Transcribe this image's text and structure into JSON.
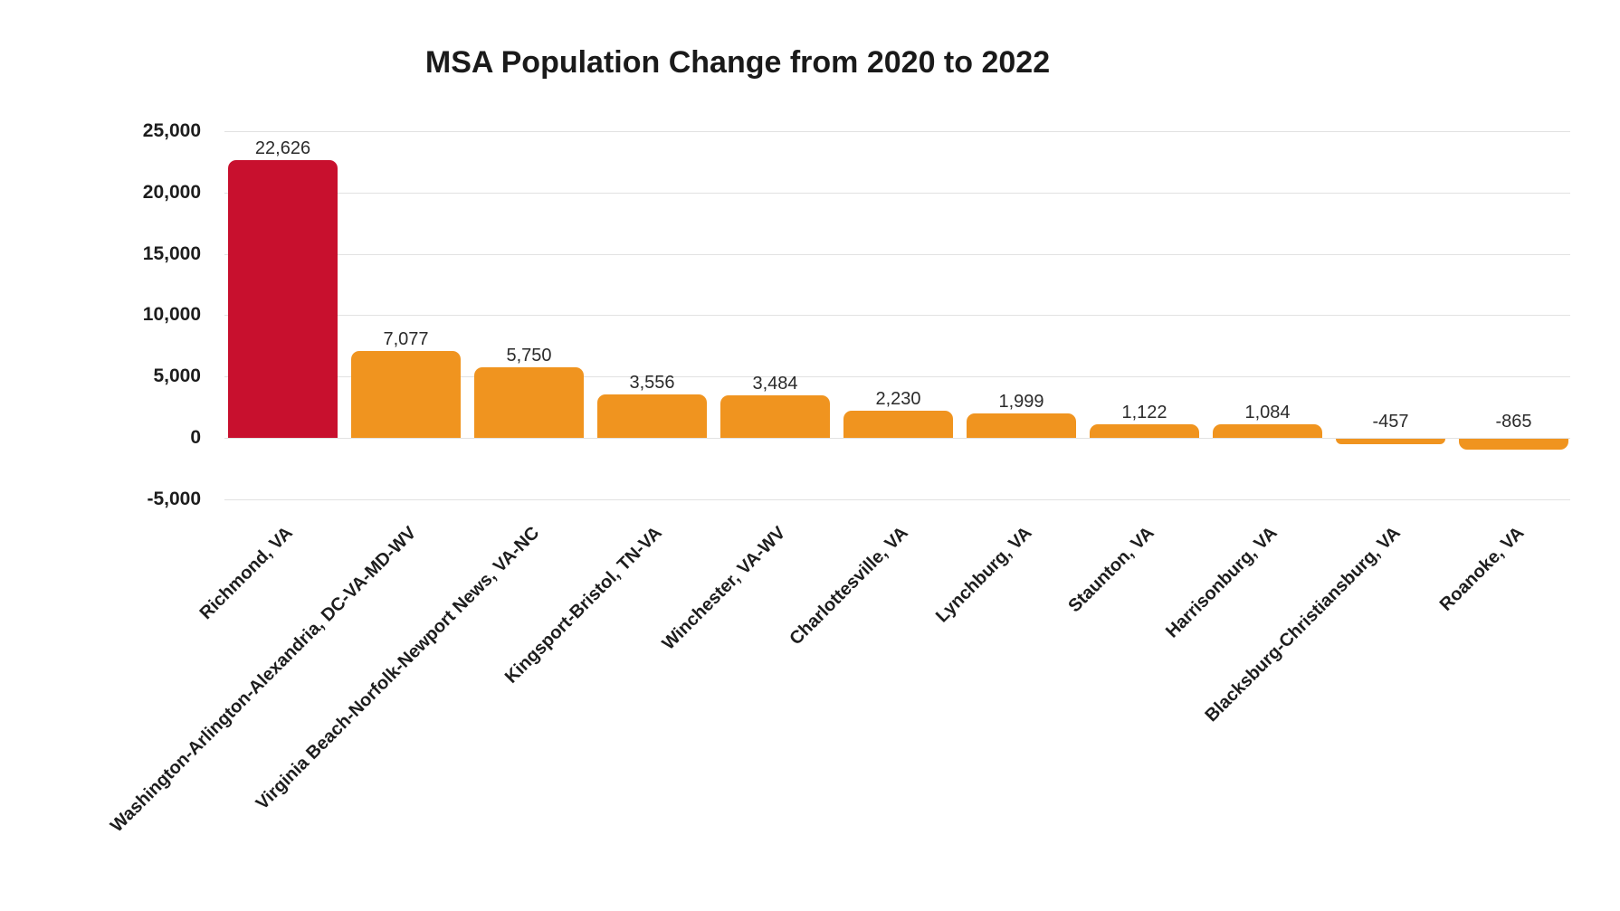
{
  "chart_data": {
    "type": "bar",
    "title": "MSA Population Change from 2020 to 2022",
    "categories": [
      "Richmond, VA",
      "Washington-Arlington-Alexandria, DC-VA-MD-WV",
      "Virginia Beach-Norfolk-Newport News, VA-NC",
      "Kingsport-Bristol, TN-VA",
      "Winchester, VA-WV",
      "Charlottesville, VA",
      "Lynchburg, VA",
      "Staunton, VA",
      "Harrisonburg, VA",
      "Blacksburg-Christiansburg, VA",
      "Roanoke, VA"
    ],
    "values": [
      22626,
      7077,
      5750,
      3556,
      3484,
      2230,
      1999,
      1122,
      1084,
      -457,
      -865
    ],
    "value_labels": [
      "22,626",
      "7,077",
      "5,750",
      "3,556",
      "3,484",
      "2,230",
      "1,999",
      "1,122",
      "1,084",
      "-457",
      "-865"
    ],
    "y_axis": {
      "tick_labels": [
        "25,000",
        "20,000",
        "15,000",
        "10,000",
        "5,000",
        "0",
        "-5,000"
      ],
      "tick_values": [
        25000,
        20000,
        15000,
        10000,
        5000,
        0,
        -5000
      ],
      "min": -5000,
      "max": 25000
    },
    "xlabel": "",
    "ylabel": "",
    "grid": true,
    "legend": false,
    "highlight_index": 0,
    "colors": {
      "highlight_bar": "#C8102E",
      "default_bar": "#F0941F",
      "gridline": "#E2E2E2",
      "title_text": "#1A1A1A",
      "tick_text": "#1D1D1D",
      "value_text": "#2B2B2B",
      "background": "#FFFFFF"
    }
  }
}
